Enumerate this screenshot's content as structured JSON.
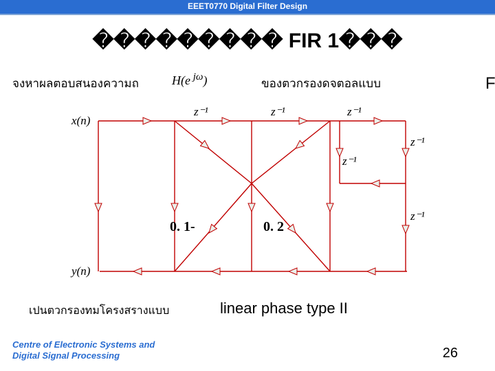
{
  "header": {
    "title": "EEET0770 Digital Filter Design"
  },
  "title": "��������� FIR 1���",
  "line1_left": "จงหาผลตอบสนองความถ",
  "line1_eq": "H(e<sup> jω</sup>)",
  "line1_right": "ของตวกรองดจตอลแบบ",
  "line1_far": "F",
  "diagram": {
    "xn": "x(n)",
    "yn": "y(n)",
    "z": "z⁻¹",
    "c1": "0. 1-",
    "c2": "0. 2",
    "line_color": "#c00000",
    "arrow_fill": "#eaf0ea",
    "stroke_width": 1.4
  },
  "line2_left": "เปนตวกรองทมโครงสรางแบบ",
  "line2_right": "linear phase type II",
  "footer": {
    "l1": "Centre of Electronic Systems and",
    "l2": "Digital Signal Processing"
  },
  "pagenum": "26"
}
